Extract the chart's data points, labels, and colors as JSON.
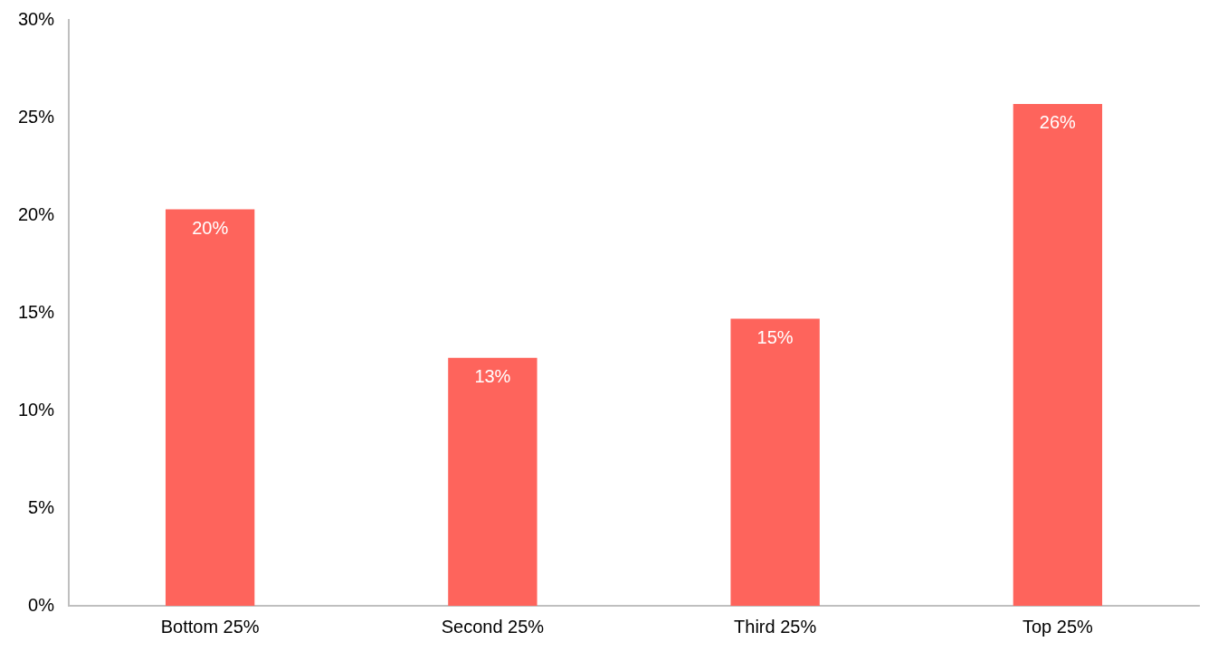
{
  "chart_data": {
    "type": "bar",
    "categories": [
      "Bottom 25%",
      "Second 25%",
      "Third 25%",
      "Top 25%"
    ],
    "values": [
      20.3,
      12.7,
      14.7,
      25.7
    ],
    "value_labels": [
      "20%",
      "13%",
      "15%",
      "26%"
    ],
    "color": "#fe645c",
    "ylim": [
      0,
      30
    ],
    "yticks": [
      {
        "value": 0,
        "label": "0%"
      },
      {
        "value": 5,
        "label": "5%"
      },
      {
        "value": 10,
        "label": "10%"
      },
      {
        "value": 15,
        "label": "15%"
      },
      {
        "value": 20,
        "label": "20%"
      },
      {
        "value": 25,
        "label": "25%"
      },
      {
        "value": 30,
        "label": "30%"
      }
    ]
  }
}
